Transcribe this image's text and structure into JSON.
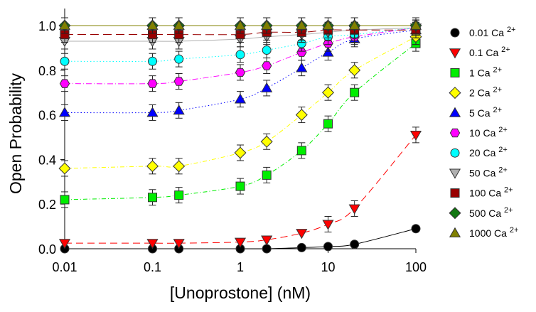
{
  "chart_data": {
    "type": "scatter",
    "xlabel": "[Unoprostone] (nM)",
    "ylabel": "Open Probability",
    "xscale": "log",
    "xlim": [
      0.01,
      100
    ],
    "ylim": [
      0,
      1.07
    ],
    "xticks": [
      "0.01",
      "0.1",
      "1",
      "10",
      "100"
    ],
    "xtick_values": [
      0.01,
      0.1,
      1,
      10,
      100
    ],
    "yticks": [
      "0.0",
      "0.2",
      "0.4",
      "0.6",
      "0.8",
      "1.0"
    ],
    "ytick_values": [
      0,
      0.2,
      0.4,
      0.6,
      0.8,
      1.0
    ],
    "legend_position": "right",
    "legend_suffix": "2+",
    "x": [
      0.01,
      0.1,
      0.2,
      1,
      2,
      5,
      10,
      20,
      100
    ],
    "series": [
      {
        "name": "0.01 Ca",
        "color": "#000000",
        "marker": "circle",
        "dash": "",
        "values": [
          0,
          0,
          0,
          0,
          0,
          0.005,
          0.01,
          0.02,
          0.09
        ]
      },
      {
        "name": "0.1 Ca",
        "color": "#ff0000",
        "marker": "tri-down",
        "dash": "10,6",
        "values": [
          0.025,
          0.025,
          0.025,
          0.03,
          0.04,
          0.07,
          0.11,
          0.18,
          0.51
        ]
      },
      {
        "name": "1 Ca",
        "color": "#00ee00",
        "marker": "square",
        "dash": "6,3,1,3",
        "values": [
          0.22,
          0.23,
          0.24,
          0.28,
          0.33,
          0.44,
          0.56,
          0.7,
          0.92
        ]
      },
      {
        "name": "2 Ca",
        "color": "#ffff00",
        "marker": "diamond",
        "dash": "6,3,1,3",
        "values": [
          0.36,
          0.37,
          0.37,
          0.43,
          0.48,
          0.6,
          0.7,
          0.8,
          0.95
        ]
      },
      {
        "name": "5 Ca",
        "color": "#0000ff",
        "marker": "tri-up",
        "dash": "1.5,3",
        "values": [
          0.61,
          0.61,
          0.62,
          0.67,
          0.72,
          0.81,
          0.88,
          0.94,
          0.98
        ]
      },
      {
        "name": "10 Ca",
        "color": "#ff00ff",
        "marker": "hexagon",
        "dash": "8,3,1,3",
        "values": [
          0.74,
          0.74,
          0.75,
          0.79,
          0.82,
          0.88,
          0.92,
          0.95,
          0.99
        ]
      },
      {
        "name": "20 Ca",
        "color": "#00ffff",
        "marker": "circle",
        "dash": "1.5,3",
        "values": [
          0.84,
          0.84,
          0.85,
          0.87,
          0.89,
          0.92,
          0.95,
          0.96,
          0.99
        ]
      },
      {
        "name": "50 Ca",
        "color": "#b0b0b0",
        "marker": "tri-down",
        "dash": "",
        "values": [
          0.93,
          0.93,
          0.93,
          0.94,
          0.95,
          0.96,
          0.97,
          0.98,
          0.99
        ]
      },
      {
        "name": "100 Ca",
        "color": "#990000",
        "marker": "square",
        "dash": "12,6",
        "values": [
          0.96,
          0.96,
          0.96,
          0.96,
          0.97,
          0.97,
          0.98,
          0.98,
          0.98
        ]
      },
      {
        "name": "500 Ca",
        "color": "#117711",
        "marker": "diamond",
        "dash": "8,4",
        "values": [
          1.0,
          1.0,
          1.0,
          1.0,
          1.0,
          1.0,
          1.0,
          1.0,
          1.0
        ]
      },
      {
        "name": "1000 Ca",
        "color": "#808000",
        "marker": "tri-up",
        "dash": "",
        "values": [
          1.0,
          1.0,
          1.0,
          1.0,
          1.0,
          1.0,
          1.0,
          1.0,
          1.0
        ]
      }
    ],
    "error": 0.035
  }
}
